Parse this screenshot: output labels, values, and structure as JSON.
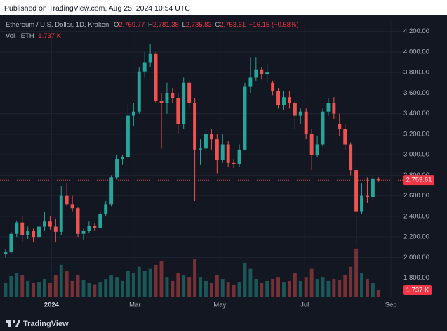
{
  "header": {
    "published": "Published on TradingView.com, Aug 25, 2024 10:54 UTC"
  },
  "chart_data": {
    "type": "candlestick",
    "title": "Ethereum / U.S. Dollar, 1D, Kraken",
    "ohlc_captions": [
      "O",
      "H",
      "L",
      "C"
    ],
    "ohlc_labels": [
      "2,769.77",
      "2,781.38",
      "2,735.83",
      "2,753.61"
    ],
    "change_label": "−16.15 (−0.58%)",
    "volume_title": "Vol · ETH",
    "volume_label": "1.737 K",
    "up_color": "#26a69a",
    "down_color": "#ef5350",
    "candles": [
      [
        2030,
        2080,
        2000,
        2050
      ],
      [
        2050,
        2250,
        2040,
        2230
      ],
      [
        2230,
        2360,
        2200,
        2340
      ],
      [
        2340,
        2400,
        2150,
        2220
      ],
      [
        2220,
        2300,
        2180,
        2260
      ],
      [
        2260,
        2280,
        2150,
        2200
      ],
      [
        2200,
        2350,
        2190,
        2300
      ],
      [
        2300,
        2440,
        2260,
        2350
      ],
      [
        2350,
        2400,
        2270,
        2300
      ],
      [
        2300,
        2380,
        2150,
        2250
      ],
      [
        2250,
        2700,
        2220,
        2600
      ],
      [
        2600,
        2720,
        2500,
        2520
      ],
      [
        2520,
        2600,
        2450,
        2480
      ],
      [
        2480,
        2490,
        2200,
        2230
      ],
      [
        2230,
        2280,
        2170,
        2260
      ],
      [
        2260,
        2350,
        2240,
        2310
      ],
      [
        2310,
        2330,
        2260,
        2290
      ],
      [
        2290,
        2450,
        2280,
        2420
      ],
      [
        2420,
        2550,
        2400,
        2520
      ],
      [
        2520,
        2800,
        2500,
        2780
      ],
      [
        2780,
        3000,
        2760,
        2960
      ],
      [
        2960,
        3000,
        2900,
        2980
      ],
      [
        2980,
        3480,
        2960,
        3380
      ],
      [
        3380,
        3500,
        3280,
        3420
      ],
      [
        3420,
        3850,
        3400,
        3810
      ],
      [
        3810,
        4000,
        3750,
        3900
      ],
      [
        3900,
        4080,
        3850,
        3980
      ],
      [
        3980,
        4000,
        3500,
        3520
      ],
      [
        3520,
        3600,
        3060,
        3500
      ],
      [
        3500,
        3700,
        3400,
        3600
      ],
      [
        3600,
        3650,
        3500,
        3550
      ],
      [
        3550,
        3600,
        3200,
        3300
      ],
      [
        3300,
        3750,
        3250,
        3700
      ],
      [
        3700,
        3720,
        3450,
        3500
      ],
      [
        3500,
        3550,
        2550,
        3050
      ],
      [
        3050,
        3150,
        2900,
        3060
      ],
      [
        3060,
        3280,
        3000,
        3200
      ],
      [
        3200,
        3250,
        3050,
        3150
      ],
      [
        3150,
        3200,
        2820,
        2950
      ],
      [
        2950,
        3200,
        2920,
        3100
      ],
      [
        3100,
        3130,
        2880,
        2920
      ],
      [
        2920,
        2960,
        2870,
        2910
      ],
      [
        2910,
        3100,
        2880,
        3050
      ],
      [
        3050,
        3700,
        3040,
        3660
      ],
      [
        3660,
        3950,
        3600,
        3750
      ],
      [
        3750,
        3950,
        3720,
        3830
      ],
      [
        3830,
        3850,
        3730,
        3780
      ],
      [
        3780,
        3880,
        3700,
        3800
      ],
      [
        3700,
        3720,
        3580,
        3620
      ],
      [
        3620,
        3650,
        3450,
        3480
      ],
      [
        3480,
        3620,
        3440,
        3560
      ],
      [
        3560,
        3620,
        3450,
        3500
      ],
      [
        3500,
        3520,
        3250,
        3380
      ],
      [
        3380,
        3450,
        3300,
        3420
      ],
      [
        3420,
        3450,
        3150,
        3200
      ],
      [
        3200,
        3250,
        2850,
        3000
      ],
      [
        3000,
        3180,
        2980,
        3100
      ],
      [
        3100,
        3450,
        3080,
        3420
      ],
      [
        3420,
        3550,
        3380,
        3500
      ],
      [
        3500,
        3560,
        3350,
        3400
      ],
      [
        3300,
        3400,
        3180,
        3250
      ],
      [
        3250,
        3300,
        3050,
        3100
      ],
      [
        3100,
        3120,
        2800,
        2850
      ],
      [
        2850,
        2880,
        2120,
        2450
      ],
      [
        2450,
        2720,
        2420,
        2600
      ],
      [
        2600,
        2780,
        2530,
        2590
      ],
      [
        2590,
        2800,
        2560,
        2770
      ],
      [
        2769.77,
        2781.38,
        2735.83,
        2753.61
      ]
    ],
    "volume": [
      3.5,
      5.2,
      6,
      5.5,
      4,
      3.5,
      3.8,
      4.5,
      3.6,
      5.5,
      8,
      6.5,
      4,
      5.5,
      4.2,
      3.5,
      3.2,
      3.8,
      4.5,
      5.5,
      5,
      4,
      6.5,
      6,
      7.5,
      6.5,
      7,
      8,
      9,
      5,
      4,
      6,
      5.5,
      5,
      9.5,
      5,
      4,
      3.5,
      5.5,
      4.5,
      3.8,
      3,
      3.8,
      8.5,
      7,
      4.5,
      3.5,
      4,
      4.5,
      5,
      3.8,
      4,
      6,
      4,
      5,
      7,
      4.5,
      5,
      4,
      4.5,
      4.2,
      5.5,
      7.5,
      12,
      6,
      4.5,
      3.5,
      1.737
    ],
    "volume_lim": [
      0,
      13
    ],
    "xlim": [
      -1,
      71.5
    ],
    "xticks": [
      {
        "value": 8.25,
        "label": "2024"
      },
      {
        "value": 23.25,
        "label": "Mar"
      },
      {
        "value": 38.5,
        "label": "May"
      },
      {
        "value": 53.75,
        "label": "Jul"
      },
      {
        "value": 69.25,
        "label": "Sep"
      }
    ],
    "ylim": [
      1613,
      4300
    ],
    "yticks": [
      {
        "value": 1800,
        "label": "1,800.00"
      },
      {
        "value": 2000,
        "label": "2,000.00"
      },
      {
        "value": 2200,
        "label": "2,200.00"
      },
      {
        "value": 2400,
        "label": "2,400.00"
      },
      {
        "value": 2600,
        "label": "2,600.00"
      },
      {
        "value": 2800,
        "label": "2,800.00"
      },
      {
        "value": 3000,
        "label": "3,000.00"
      },
      {
        "value": 3200,
        "label": "3,200.00"
      },
      {
        "value": 3400,
        "label": "3,400.00"
      },
      {
        "value": 3600,
        "label": "3,600.00"
      },
      {
        "value": 3800,
        "label": "3,800.00"
      },
      {
        "value": 4000,
        "label": "4,000.00"
      },
      {
        "value": 4200,
        "label": "4,200.00"
      }
    ],
    "grid": true,
    "last_price_line": true
  },
  "footer": {
    "brand": "TradingView"
  }
}
